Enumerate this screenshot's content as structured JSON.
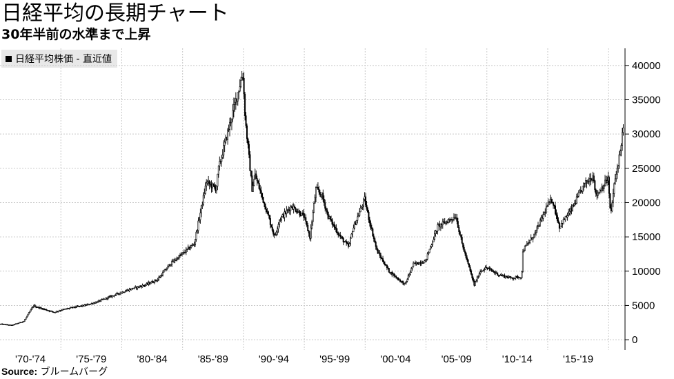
{
  "title": "日経平均の長期チャート",
  "subtitle": "30年半前の水準まで上昇",
  "source": {
    "label": "Source:",
    "text": "ブルームバーグ"
  },
  "chart_data": {
    "type": "candlestick",
    "title": "日経平均の長期チャート",
    "subtitle": "30年半前の水準まで上昇",
    "legend": {
      "label": "日経平均株価 - 直近値",
      "placement": "top-left",
      "color": "#000000"
    },
    "xlabel": "",
    "ylabel": "",
    "ylim": [
      -1500,
      42500
    ],
    "xlim": [
      1970.0,
      2021.35
    ],
    "y_axis_position": "right",
    "y_ticks": [
      0,
      5000,
      10000,
      15000,
      20000,
      25000,
      30000,
      35000,
      40000
    ],
    "y_tick_labels": [
      "0",
      "5000",
      "10000",
      "15000",
      "20000",
      "25000",
      "30000",
      "35000",
      "40000"
    ],
    "x_ticks": [
      1970,
      1975,
      1980,
      1985,
      1990,
      1995,
      2000,
      2005,
      2010,
      2015,
      2020
    ],
    "x_tick_labels": [
      "'70-'74",
      "'75-'79",
      "'80-'84",
      "'85-'89",
      "'90-'94",
      "'95-'99",
      "'00-'04",
      "'05-'09",
      "'10-'14",
      "'15-'19"
    ],
    "grid": true,
    "up_color": "#ffffff",
    "down_color": "#000000",
    "series": [
      {
        "name": "日経平均株価 - 直近値",
        "keypoints": {
          "t": [
            1970.0,
            1971.0,
            1972.0,
            1972.8,
            1973.0,
            1974.5,
            1975.0,
            1976.0,
            1977.0,
            1978.0,
            1979.0,
            1980.0,
            1981.0,
            1982.0,
            1983.0,
            1984.0,
            1985.0,
            1986.0,
            1987.0,
            1987.8,
            1988.0,
            1989.0,
            1989.99,
            1990.2,
            1990.75,
            1991.0,
            1992.0,
            1992.6,
            1993.0,
            1994.0,
            1995.0,
            1995.5,
            1996.0,
            1996.5,
            1997.0,
            1998.0,
            1998.7,
            1999.0,
            2000.0,
            2000.3,
            2001.0,
            2002.0,
            2003.0,
            2003.3,
            2004.0,
            2005.0,
            2006.0,
            2007.0,
            2007.5,
            2008.0,
            2009.0,
            2009.5,
            2010.0,
            2011.0,
            2012.0,
            2012.9,
            2013.0,
            2014.0,
            2015.0,
            2015.4,
            2016.0,
            2017.0,
            2018.0,
            2018.8,
            2019.0,
            2020.0,
            2020.2,
            2020.5,
            2021.0,
            2021.2
          ],
          "v": [
            2300,
            2100,
            2700,
            5000,
            4800,
            4000,
            4300,
            4700,
            5000,
            5500,
            6200,
            6900,
            7500,
            8000,
            8800,
            11000,
            12500,
            14000,
            23000,
            22000,
            25000,
            32000,
            38900,
            32000,
            22000,
            24000,
            18500,
            15000,
            17500,
            19500,
            18000,
            15000,
            22000,
            21000,
            18000,
            15000,
            13500,
            16000,
            20500,
            18000,
            13000,
            10000,
            8500,
            8000,
            11000,
            11500,
            16500,
            17500,
            18000,
            14000,
            8000,
            10000,
            10500,
            9500,
            9000,
            9200,
            13000,
            15500,
            19500,
            20500,
            16500,
            19000,
            22500,
            24000,
            21000,
            23500,
            18000,
            22500,
            27500,
            30500
          ]
        }
      }
    ]
  }
}
